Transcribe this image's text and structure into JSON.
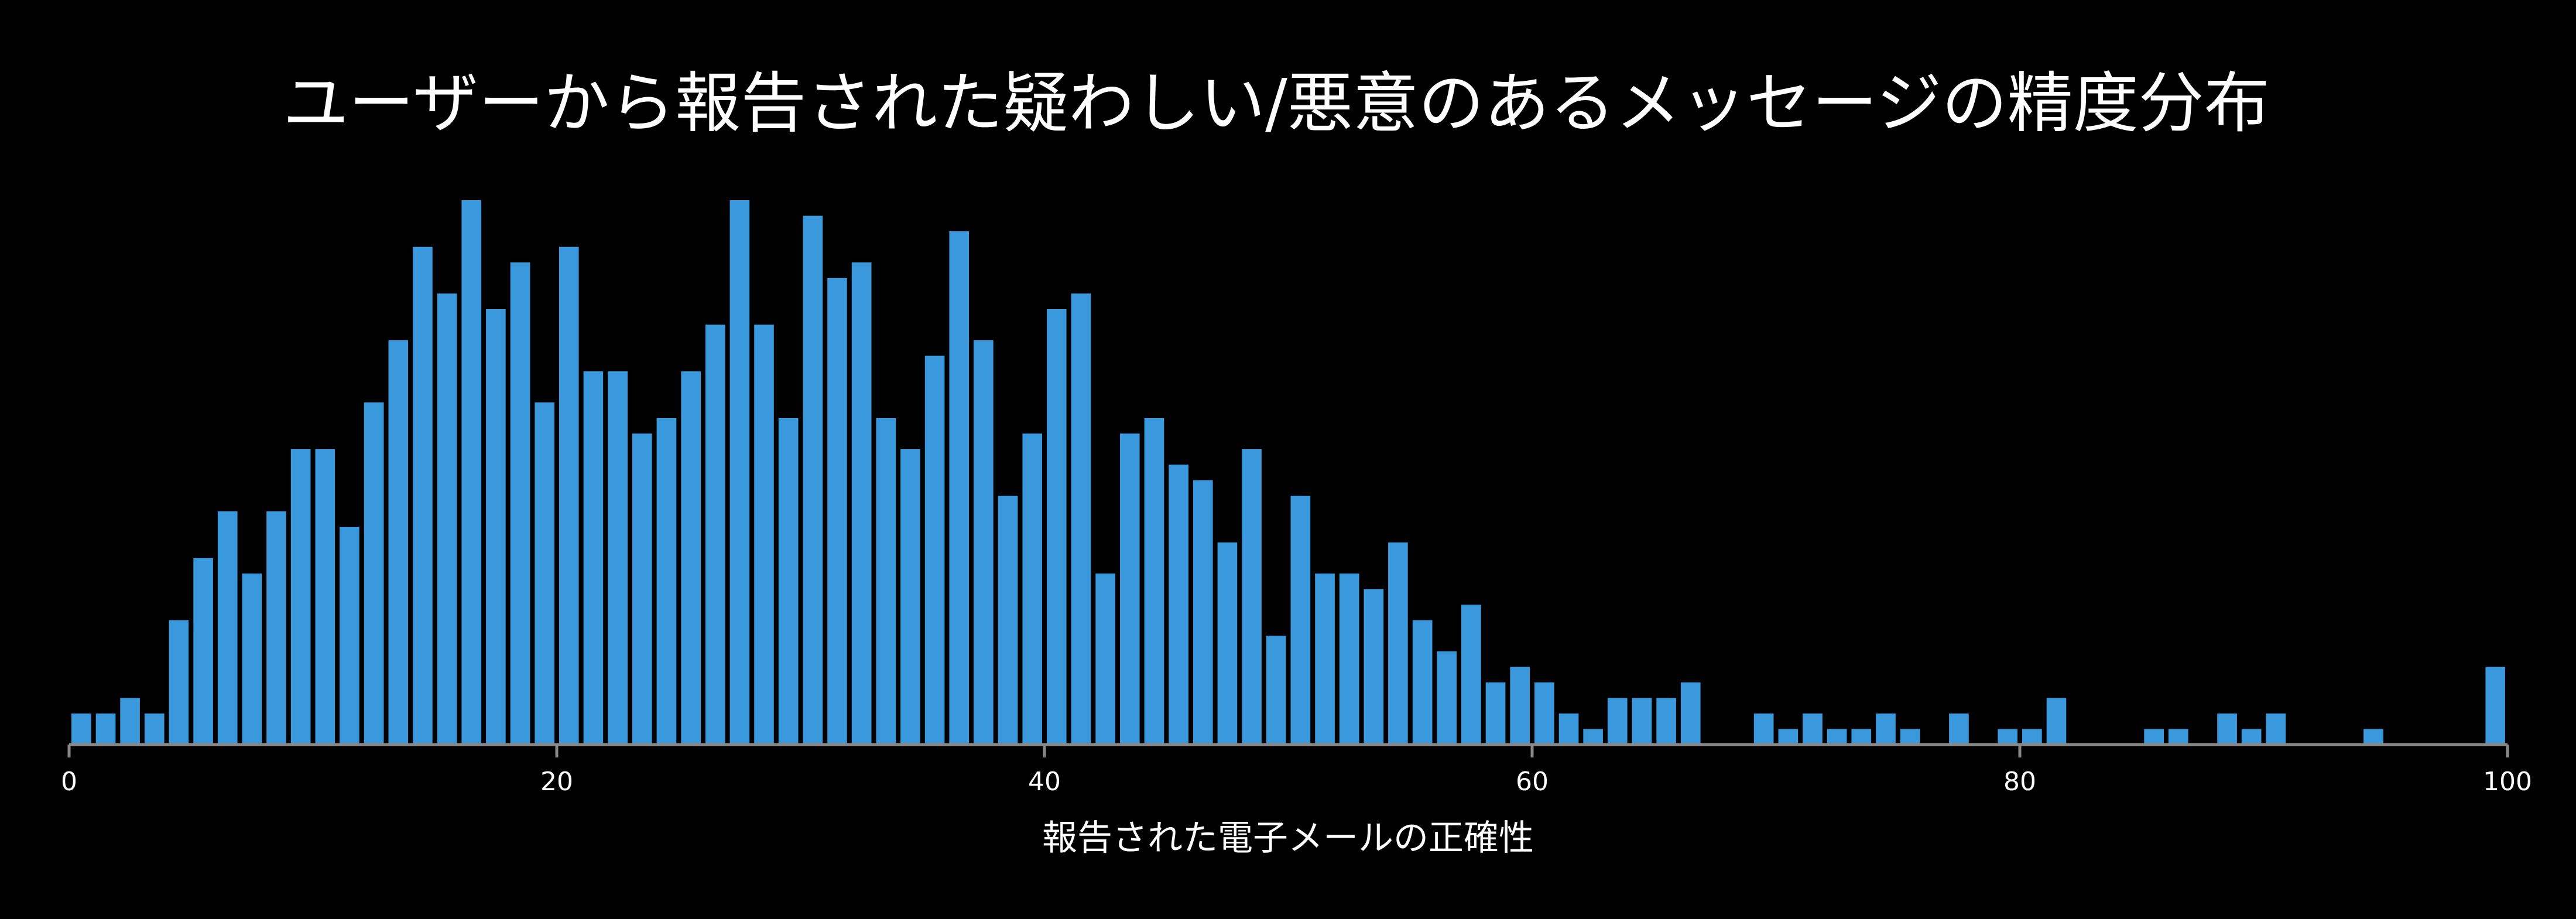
{
  "chart_data": {
    "type": "bar",
    "title": "ユーザーから報告された疑わしい/悪意のあるメッセージの精度分布",
    "xlabel": "報告された電子メールの正確性",
    "ylabel": "",
    "xlim": [
      0,
      100
    ],
    "ylim": [
      0,
      35
    ],
    "grid": false,
    "bin_width": 1,
    "x_ticks": [
      0,
      20,
      40,
      60,
      80,
      100
    ],
    "bar_color": "#3a98dc",
    "axis_color": "#888888",
    "background": "#000000",
    "x": [
      0,
      1,
      2,
      3,
      4,
      5,
      6,
      7,
      8,
      9,
      10,
      11,
      12,
      13,
      14,
      15,
      16,
      17,
      18,
      19,
      20,
      21,
      22,
      23,
      24,
      25,
      26,
      27,
      28,
      29,
      30,
      31,
      32,
      33,
      34,
      35,
      36,
      37,
      38,
      39,
      40,
      41,
      42,
      43,
      44,
      45,
      46,
      47,
      48,
      49,
      50,
      51,
      52,
      53,
      54,
      55,
      56,
      57,
      58,
      59,
      60,
      61,
      62,
      63,
      64,
      65,
      66,
      67,
      68,
      69,
      70,
      71,
      72,
      73,
      74,
      75,
      76,
      77,
      78,
      79,
      80,
      81,
      82,
      83,
      84,
      85,
      86,
      87,
      88,
      89,
      90,
      91,
      92,
      93,
      94,
      95,
      96,
      97,
      98,
      99
    ],
    "values": [
      2,
      2,
      3,
      2,
      8,
      12,
      15,
      11,
      15,
      19,
      19,
      14,
      22,
      26,
      32,
      29,
      35,
      28,
      31,
      22,
      32,
      24,
      24,
      20,
      21,
      24,
      27,
      35,
      27,
      21,
      34,
      30,
      31,
      21,
      19,
      25,
      33,
      26,
      16,
      20,
      28,
      29,
      11,
      20,
      21,
      18,
      17,
      13,
      19,
      7,
      16,
      11,
      11,
      10,
      13,
      8,
      6,
      9,
      4,
      5,
      4,
      2,
      1,
      3,
      3,
      3,
      4,
      0,
      0,
      2,
      1,
      2,
      1,
      1,
      2,
      1,
      0,
      2,
      0,
      1,
      1,
      3,
      0,
      0,
      0,
      1,
      1,
      0,
      2,
      1,
      2,
      0,
      0,
      0,
      1,
      0,
      0,
      0,
      0,
      5
    ]
  }
}
